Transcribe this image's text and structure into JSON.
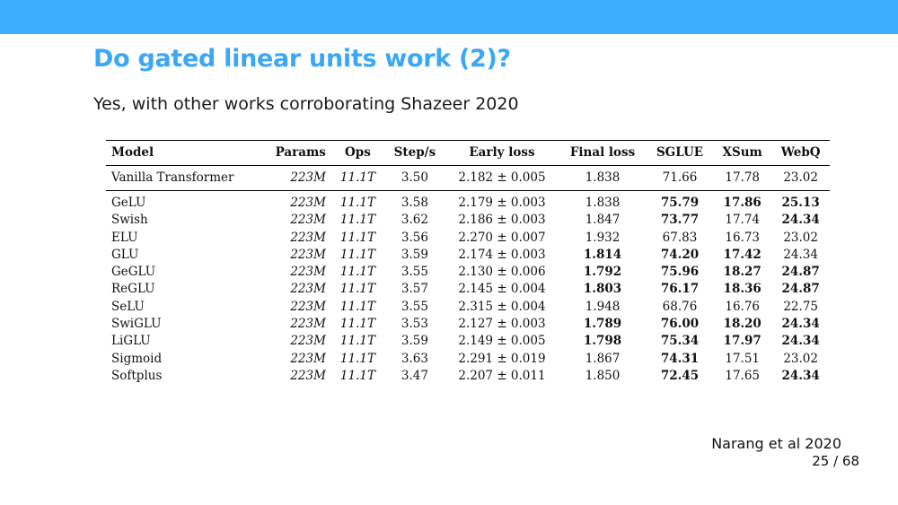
{
  "slide": {
    "title": "Do gated linear units work (2)?",
    "subtitle": "Yes, with other works corroborating Shazeer 2020",
    "citation": "Narang et al 2020",
    "page": "25 / 68"
  },
  "colors": {
    "accent": "#3daefc",
    "title": "#3aa8f5"
  },
  "table": {
    "headers": [
      "Model",
      "Params",
      "Ops",
      "Step/s",
      "Early loss",
      "Final loss",
      "SGLUE",
      "XSum",
      "WebQ"
    ],
    "baseline": {
      "model": "Vanilla Transformer",
      "params": "223M",
      "ops": "11.1T",
      "steps": "3.50",
      "early": "2.182 ± 0.005",
      "final": "1.838",
      "sglue": "71.66",
      "xsum": "17.78",
      "webq": "23.02"
    },
    "rows": [
      {
        "model": "GeLU",
        "params": "223M",
        "ops": "11.1T",
        "steps": "3.58",
        "early": "2.179 ± 0.003",
        "final": "1.838",
        "sglue": "75.79",
        "xsum": "17.86",
        "webq": "25.13"
      },
      {
        "model": "Swish",
        "params": "223M",
        "ops": "11.1T",
        "steps": "3.62",
        "early": "2.186 ± 0.003",
        "final": "1.847",
        "sglue": "73.77",
        "xsum": "17.74",
        "webq": "24.34"
      },
      {
        "model": "ELU",
        "params": "223M",
        "ops": "11.1T",
        "steps": "3.56",
        "early": "2.270 ± 0.007",
        "final": "1.932",
        "sglue": "67.83",
        "xsum": "16.73",
        "webq": "23.02"
      },
      {
        "model": "GLU",
        "params": "223M",
        "ops": "11.1T",
        "steps": "3.59",
        "early": "2.174 ± 0.003",
        "final": "1.814",
        "sglue": "74.20",
        "xsum": "17.42",
        "webq": "24.34"
      },
      {
        "model": "GeGLU",
        "params": "223M",
        "ops": "11.1T",
        "steps": "3.55",
        "early": "2.130 ± 0.006",
        "final": "1.792",
        "sglue": "75.96",
        "xsum": "18.27",
        "webq": "24.87"
      },
      {
        "model": "ReGLU",
        "params": "223M",
        "ops": "11.1T",
        "steps": "3.57",
        "early": "2.145 ± 0.004",
        "final": "1.803",
        "sglue": "76.17",
        "xsum": "18.36",
        "webq": "24.87"
      },
      {
        "model": "SeLU",
        "params": "223M",
        "ops": "11.1T",
        "steps": "3.55",
        "early": "2.315 ± 0.004",
        "final": "1.948",
        "sglue": "68.76",
        "xsum": "16.76",
        "webq": "22.75"
      },
      {
        "model": "SwiGLU",
        "params": "223M",
        "ops": "11.1T",
        "steps": "3.53",
        "early": "2.127 ± 0.003",
        "final": "1.789",
        "sglue": "76.00",
        "xsum": "18.20",
        "webq": "24.34"
      },
      {
        "model": "LiGLU",
        "params": "223M",
        "ops": "11.1T",
        "steps": "3.59",
        "early": "2.149 ± 0.005",
        "final": "1.798",
        "sglue": "75.34",
        "xsum": "17.97",
        "webq": "24.34"
      },
      {
        "model": "Sigmoid",
        "params": "223M",
        "ops": "11.1T",
        "steps": "3.63",
        "early": "2.291 ± 0.019",
        "final": "1.867",
        "sglue": "74.31",
        "xsum": "17.51",
        "webq": "23.02"
      },
      {
        "model": "Softplus",
        "params": "223M",
        "ops": "11.1T",
        "steps": "3.47",
        "early": "2.207 ± 0.011",
        "final": "1.850",
        "sglue": "72.45",
        "xsum": "17.65",
        "webq": "24.34"
      }
    ],
    "bold_cells": [
      [
        false,
        false,
        false,
        false,
        false,
        false,
        true,
        true,
        true
      ],
      [
        false,
        false,
        false,
        false,
        false,
        false,
        true,
        false,
        true
      ],
      [
        false,
        false,
        false,
        false,
        false,
        false,
        false,
        false,
        false
      ],
      [
        false,
        false,
        false,
        false,
        false,
        true,
        true,
        true,
        false
      ],
      [
        false,
        false,
        false,
        false,
        false,
        true,
        true,
        true,
        true
      ],
      [
        false,
        false,
        false,
        false,
        false,
        true,
        true,
        true,
        true
      ],
      [
        false,
        false,
        false,
        false,
        false,
        false,
        false,
        false,
        false
      ],
      [
        false,
        false,
        false,
        false,
        false,
        true,
        true,
        true,
        true
      ],
      [
        false,
        false,
        false,
        false,
        false,
        true,
        true,
        true,
        true
      ],
      [
        false,
        false,
        false,
        false,
        false,
        false,
        true,
        false,
        false
      ],
      [
        false,
        false,
        false,
        false,
        false,
        false,
        true,
        false,
        true
      ]
    ]
  }
}
